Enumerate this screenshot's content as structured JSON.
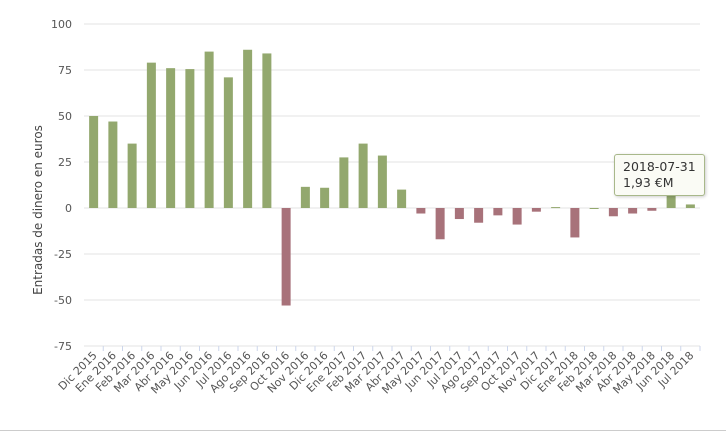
{
  "chart_data": {
    "type": "bar",
    "ylabel": "Entradas de dinero en euros",
    "ylim": [
      -75,
      100
    ],
    "yticks": [
      100,
      75,
      50,
      25,
      0,
      -25,
      -50,
      -75
    ],
    "grid": true,
    "categories": [
      "Dic 2015",
      "Ene 2016",
      "Feb 2016",
      "Mar 2016",
      "Abr 2016",
      "May 2016",
      "Jun 2016",
      "Jul 2016",
      "Ago 2016",
      "Sep 2016",
      "Oct 2016",
      "Nov 2016",
      "Dic 2016",
      "Ene 2017",
      "Feb 2017",
      "Mar 2017",
      "Abr 2017",
      "May 2017",
      "Jun 2017",
      "Jul 2017",
      "Ago 2017",
      "Sep 2017",
      "Oct 2017",
      "Nov 2017",
      "Dic 2017",
      "Ene 2018",
      "Feb 2018",
      "Mar 2018",
      "Abr 2018",
      "May 2018",
      "Jun 2018",
      "Jul 2018"
    ],
    "values": [
      50,
      47,
      35,
      79,
      76,
      75.5,
      85,
      71,
      86,
      84,
      -53,
      11.5,
      11,
      27.5,
      35,
      28.5,
      10,
      -3,
      -17,
      -6,
      -8,
      -4,
      -9,
      -2,
      0.5,
      -16,
      0,
      -4.5,
      -3,
      -1.5,
      7,
      1.93
    ],
    "colors": {
      "positive": "#93a86e",
      "negative": "#a8727a"
    },
    "tooltip": {
      "date": "2018-07-31",
      "value": "1,93 €M"
    }
  }
}
